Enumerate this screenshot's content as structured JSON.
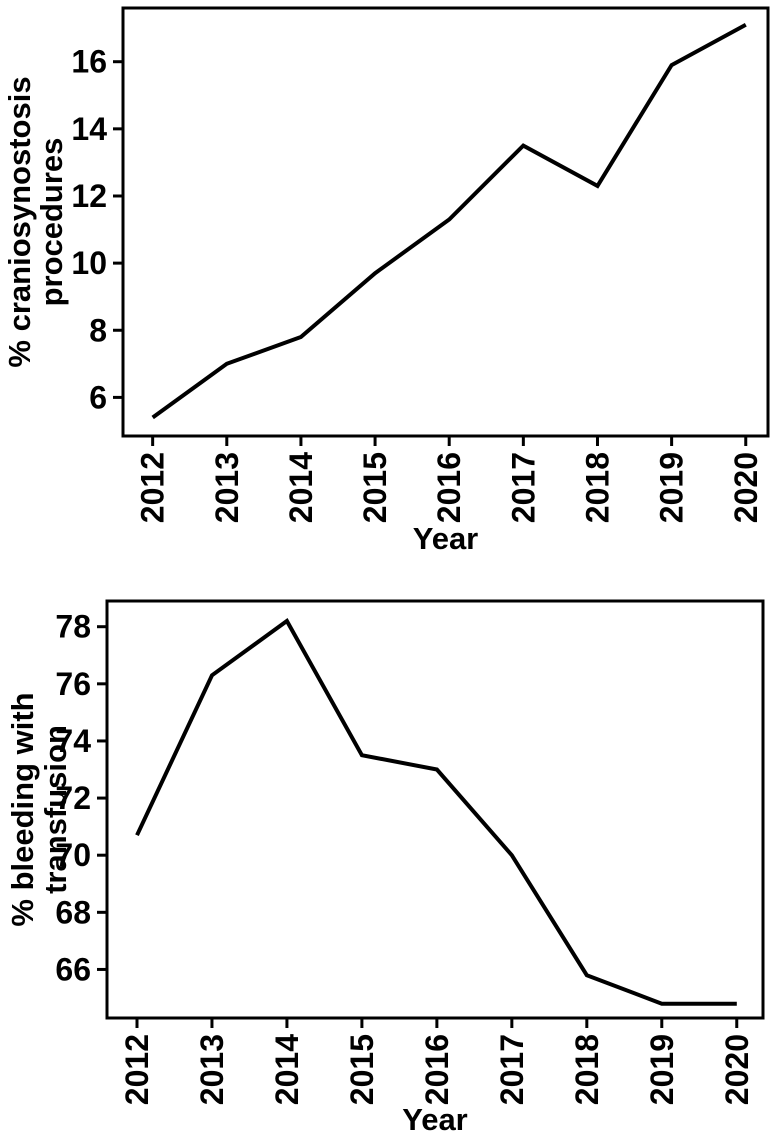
{
  "figure": {
    "background_color": "#ffffff",
    "ink_color": "#000000"
  },
  "chart_data": [
    {
      "type": "line",
      "title": "",
      "xlabel": "Year",
      "ylabel": "% craniosynostosis procedures",
      "ylabel_lines": [
        "% craniosynostosis",
        "procedures"
      ],
      "x": [
        2012,
        2013,
        2014,
        2015,
        2016,
        2017,
        2018,
        2019,
        2020
      ],
      "values": [
        5.4,
        7.0,
        7.8,
        9.7,
        11.3,
        13.5,
        12.3,
        15.9,
        17.1
      ],
      "xticks": [
        2012,
        2013,
        2014,
        2015,
        2016,
        2017,
        2018,
        2019,
        2020
      ],
      "yticks": [
        6,
        8,
        10,
        12,
        14,
        16
      ],
      "xlim": [
        2011.6,
        2020.3
      ],
      "ylim": [
        4.85,
        17.6
      ],
      "grid": false,
      "legend": null,
      "line_color": "#000000",
      "axis_color": "#000000"
    },
    {
      "type": "line",
      "title": "",
      "xlabel": "Year",
      "ylabel": "% bleeding with transfusion",
      "ylabel_lines": [
        "% bleeding with",
        "transfusion"
      ],
      "x": [
        2012,
        2013,
        2014,
        2015,
        2016,
        2017,
        2018,
        2019,
        2020
      ],
      "values": [
        70.7,
        76.3,
        78.2,
        73.5,
        73.0,
        70.0,
        65.8,
        64.8,
        64.8
      ],
      "xticks": [
        2012,
        2013,
        2014,
        2015,
        2016,
        2017,
        2018,
        2019,
        2020
      ],
      "yticks": [
        66,
        68,
        70,
        72,
        74,
        76,
        78
      ],
      "xlim": [
        2011.6,
        2020.35
      ],
      "ylim": [
        64.3,
        78.9
      ],
      "grid": false,
      "legend": null,
      "line_color": "#000000",
      "axis_color": "#000000"
    }
  ]
}
